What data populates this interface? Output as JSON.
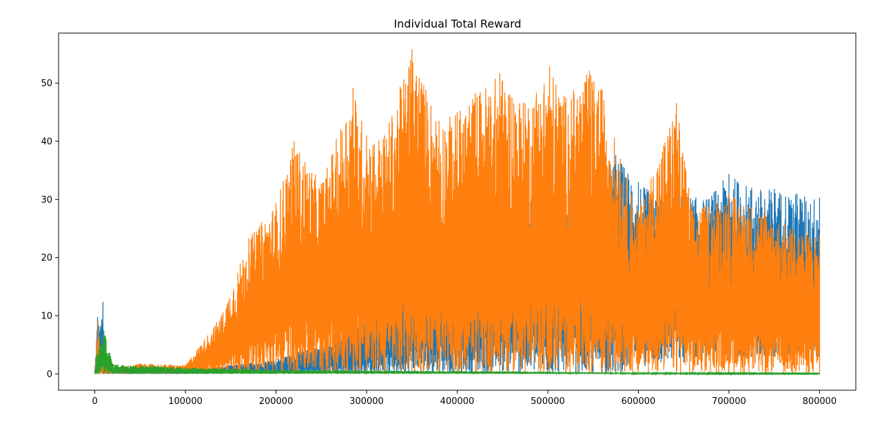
{
  "chart_data": {
    "type": "line",
    "title": "Individual Total Reward",
    "xlabel": "",
    "ylabel": "",
    "xlim": [
      -40000,
      840000
    ],
    "ylim": [
      -2.8,
      58.6
    ],
    "xticks": [
      0,
      100000,
      200000,
      300000,
      400000,
      500000,
      600000,
      700000,
      800000
    ],
    "xtick_labels": [
      "0",
      "100000",
      "200000",
      "300000",
      "400000",
      "500000",
      "600000",
      "700000",
      "800000"
    ],
    "yticks": [
      0,
      10,
      20,
      30,
      40,
      50
    ],
    "ytick_labels": [
      "0",
      "10",
      "20",
      "30",
      "40",
      "50"
    ],
    "grid": false,
    "legend": "none",
    "series": [
      {
        "color": "#1f77b4",
        "x": [
          0,
          3000,
          6000,
          9000,
          10000,
          20000,
          50000,
          100000,
          150000,
          200000,
          250000,
          300000,
          350000,
          400000,
          450000,
          500000,
          550000,
          575000,
          600000,
          625000,
          650000,
          675000,
          700000,
          725000,
          750000,
          775000,
          800000
        ],
        "low": [
          0,
          0,
          0,
          0,
          0,
          0,
          0,
          0,
          0,
          0,
          0,
          0,
          0,
          0,
          0,
          0,
          0,
          0,
          1,
          2,
          2,
          3,
          3,
          3,
          3,
          3,
          3
        ],
        "high": [
          0,
          9.8,
          7.6,
          12.4,
          1.2,
          0.5,
          0.4,
          0.5,
          1.5,
          2.5,
          5,
          10,
          20,
          26,
          30,
          31,
          33,
          37.6,
          33,
          30,
          31,
          30,
          34.4,
          32,
          31.8,
          31,
          30.3
        ]
      },
      {
        "color": "#ff7f0e",
        "x": [
          0,
          3500,
          6000,
          10000,
          20000,
          50000,
          100000,
          140000,
          170000,
          200000,
          220000,
          250000,
          285000,
          300000,
          320000,
          350000,
          380000,
          400000,
          420000,
          447000,
          475000,
          502000,
          520000,
          546000,
          560000,
          580000,
          600000,
          642000,
          660000,
          700000,
          740000,
          770000,
          800000
        ],
        "low": [
          0,
          0,
          0,
          0,
          0,
          0,
          0,
          0,
          0,
          0,
          0,
          0,
          0,
          0,
          0,
          0,
          0,
          0,
          0,
          0,
          0,
          0,
          0,
          0,
          0,
          0,
          0,
          0,
          0,
          0,
          0,
          0,
          0
        ],
        "high": [
          0,
          9.2,
          3,
          1.5,
          1,
          1.8,
          1.5,
          10.1,
          23.3,
          29.4,
          40,
          32.7,
          49.2,
          41,
          41,
          55.8,
          43.5,
          45,
          48.3,
          51.7,
          46.5,
          52.9,
          47.5,
          52.1,
          48.9,
          37,
          28,
          46.6,
          28,
          31,
          28,
          25,
          24
        ]
      },
      {
        "color": "#2ca02c",
        "x": [
          0,
          2000,
          5000,
          10000,
          20000,
          50000,
          100000,
          150000,
          200000,
          300000,
          400000,
          500000,
          550000,
          600000,
          700000,
          800000
        ],
        "low": [
          0,
          0,
          0,
          0,
          0,
          0,
          0,
          0,
          0,
          0,
          0,
          0,
          0,
          0,
          0,
          0
        ],
        "high": [
          0,
          3.3,
          4.5,
          7.5,
          1.7,
          1.5,
          1.1,
          0.9,
          0.7,
          0.6,
          0.5,
          0.4,
          0.3,
          0.2,
          0.15,
          0.1
        ]
      }
    ]
  }
}
